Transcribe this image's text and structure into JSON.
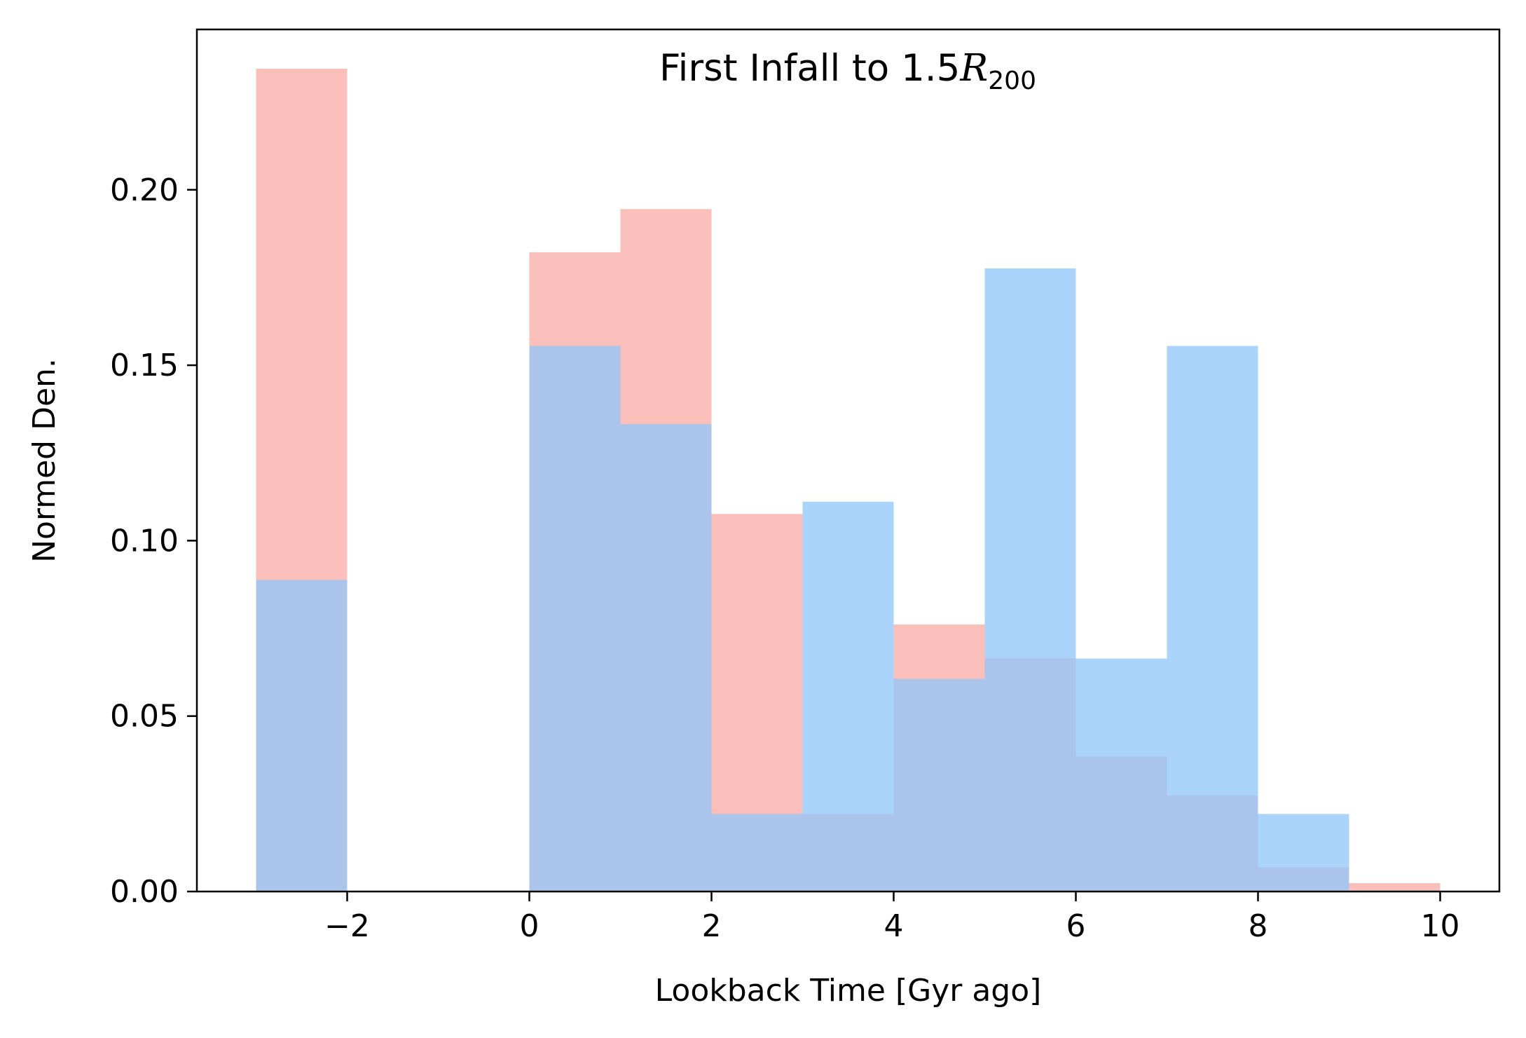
{
  "chart_data": {
    "type": "bar",
    "title": "First Infall to 1.5",
    "title_math": {
      "symbol": "R",
      "subscript": "200"
    },
    "xlabel": "Lookback Time [Gyr ago]",
    "ylabel": "Normed Den.",
    "xlim": [
      -3.65,
      10.65
    ],
    "ylim": [
      0,
      0.2457
    ],
    "xticks": [
      -2,
      0,
      2,
      4,
      6,
      8,
      10
    ],
    "xtick_labels": [
      "−2",
      "0",
      "2",
      "4",
      "6",
      "8",
      "10"
    ],
    "yticks": [
      0.0,
      0.05,
      0.1,
      0.15,
      0.2
    ],
    "ytick_labels": [
      "0.00",
      "0.05",
      "0.10",
      "0.15",
      "0.20"
    ],
    "grid": false,
    "legend": "none",
    "bin_edges": [
      -3,
      -2,
      -1,
      0,
      1,
      2,
      3,
      4,
      5,
      6,
      7,
      8,
      9,
      10
    ],
    "series": [
      {
        "color": "#f8aaa4",
        "values": [
          0.2345,
          0,
          0,
          0.1822,
          0.1945,
          0.1076,
          0.0221,
          0.0761,
          0.0665,
          0.0385,
          0.0274,
          0.0069,
          0.0024
        ]
      },
      {
        "color": "#8fc6fc",
        "values": [
          0.0888,
          0,
          0,
          0.1555,
          0.1332,
          0.0221,
          0.1111,
          0.0606,
          0.1776,
          0.0664,
          0.1555,
          0.0221,
          0
        ]
      }
    ],
    "overlap_color": "#8eaadd",
    "alpha": 0.75
  }
}
